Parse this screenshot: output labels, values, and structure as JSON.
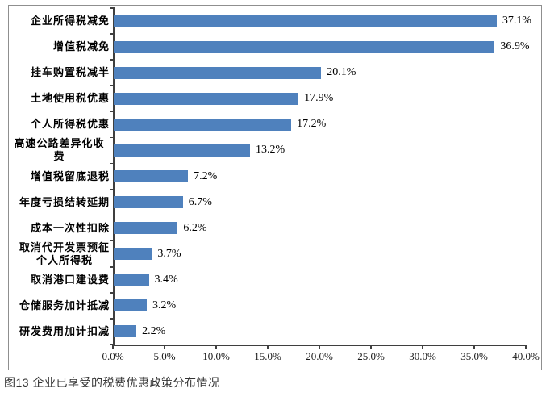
{
  "caption": "图13 企业已享受的税费优惠政策分布情况",
  "chart_data": {
    "type": "bar",
    "orientation": "horizontal",
    "title": "",
    "xlabel": "",
    "ylabel": "",
    "xlim": [
      0,
      40
    ],
    "grid": false,
    "legend": false,
    "bar_color": "#4F81BD",
    "axis_color": "#3f3f3f",
    "categories": [
      "企业所得税减免",
      "增值税减免",
      "挂车购置税减半",
      "土地使用税优惠",
      "个人所得税优惠",
      "高速公路差异化收费",
      "增值税留底退税",
      "年度亏损结转延期",
      "成本一次性扣除",
      "取消代开发票预征\n个人所得税",
      "取消港口建设费",
      "仓储服务加计抵减",
      "研发费用加计扣减"
    ],
    "values": [
      37.1,
      36.9,
      20.1,
      17.9,
      17.2,
      13.2,
      7.2,
      6.7,
      6.2,
      3.7,
      3.4,
      3.2,
      2.2
    ],
    "value_labels": [
      "37.1%",
      "36.9%",
      "20.1%",
      "17.9%",
      "17.2%",
      "13.2%",
      "7.2%",
      "6.7%",
      "6.2%",
      "3.7%",
      "3.4%",
      "3.2%",
      "2.2%"
    ],
    "x_tick_labels": [
      "0.0%",
      "5.0%",
      "10.0%",
      "15.0%",
      "20.0%",
      "25.0%",
      "30.0%",
      "35.0%",
      "40.0%"
    ]
  }
}
